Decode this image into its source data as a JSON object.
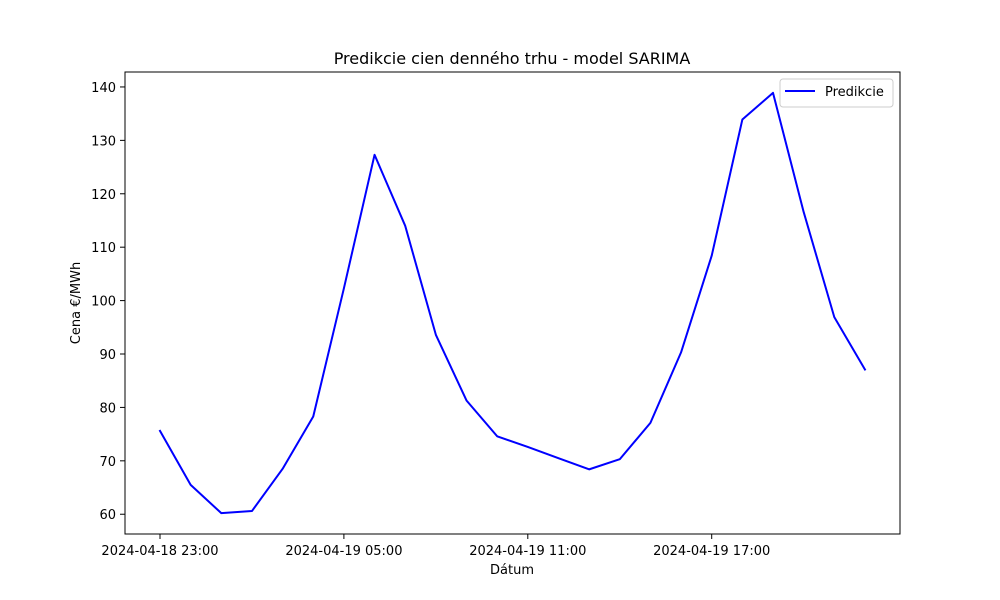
{
  "chart_data": {
    "type": "line",
    "title": "Predikcie cien denného trhu - model SARIMA",
    "xlabel": "Dátum",
    "ylabel": "Cena €/MWh",
    "x": [
      "2024-04-18 23:00",
      "2024-04-19 00:00",
      "2024-04-19 01:00",
      "2024-04-19 02:00",
      "2024-04-19 03:00",
      "2024-04-19 04:00",
      "2024-04-19 05:00",
      "2024-04-19 06:00",
      "2024-04-19 07:00",
      "2024-04-19 08:00",
      "2024-04-19 09:00",
      "2024-04-19 10:00",
      "2024-04-19 11:00",
      "2024-04-19 12:00",
      "2024-04-19 13:00",
      "2024-04-19 14:00",
      "2024-04-19 15:00",
      "2024-04-19 16:00",
      "2024-04-19 17:00",
      "2024-04-19 18:00",
      "2024-04-19 19:00",
      "2024-04-19 20:00",
      "2024-04-19 21:00",
      "2024-04-19 22:00"
    ],
    "series": [
      {
        "name": "Predikcie",
        "color": "#0000ff",
        "values": [
          75.6,
          65.5,
          60.2,
          60.6,
          68.5,
          78.3,
          102.3,
          127.3,
          114.0,
          93.6,
          81.3,
          74.6,
          72.6,
          70.5,
          68.4,
          70.3,
          77.1,
          90.3,
          108.4,
          133.9,
          138.9,
          116.6,
          96.9,
          87.1
        ]
      }
    ],
    "x_ticks": [
      "2024-04-18 23:00",
      "2024-04-19 05:00",
      "2024-04-19 11:00",
      "2024-04-19 17:00"
    ],
    "y_ticks": [
      60,
      70,
      80,
      90,
      100,
      110,
      120,
      130,
      140
    ],
    "ylim": [
      56.3,
      142.8
    ],
    "grid": false,
    "legend_position": "top-right"
  }
}
